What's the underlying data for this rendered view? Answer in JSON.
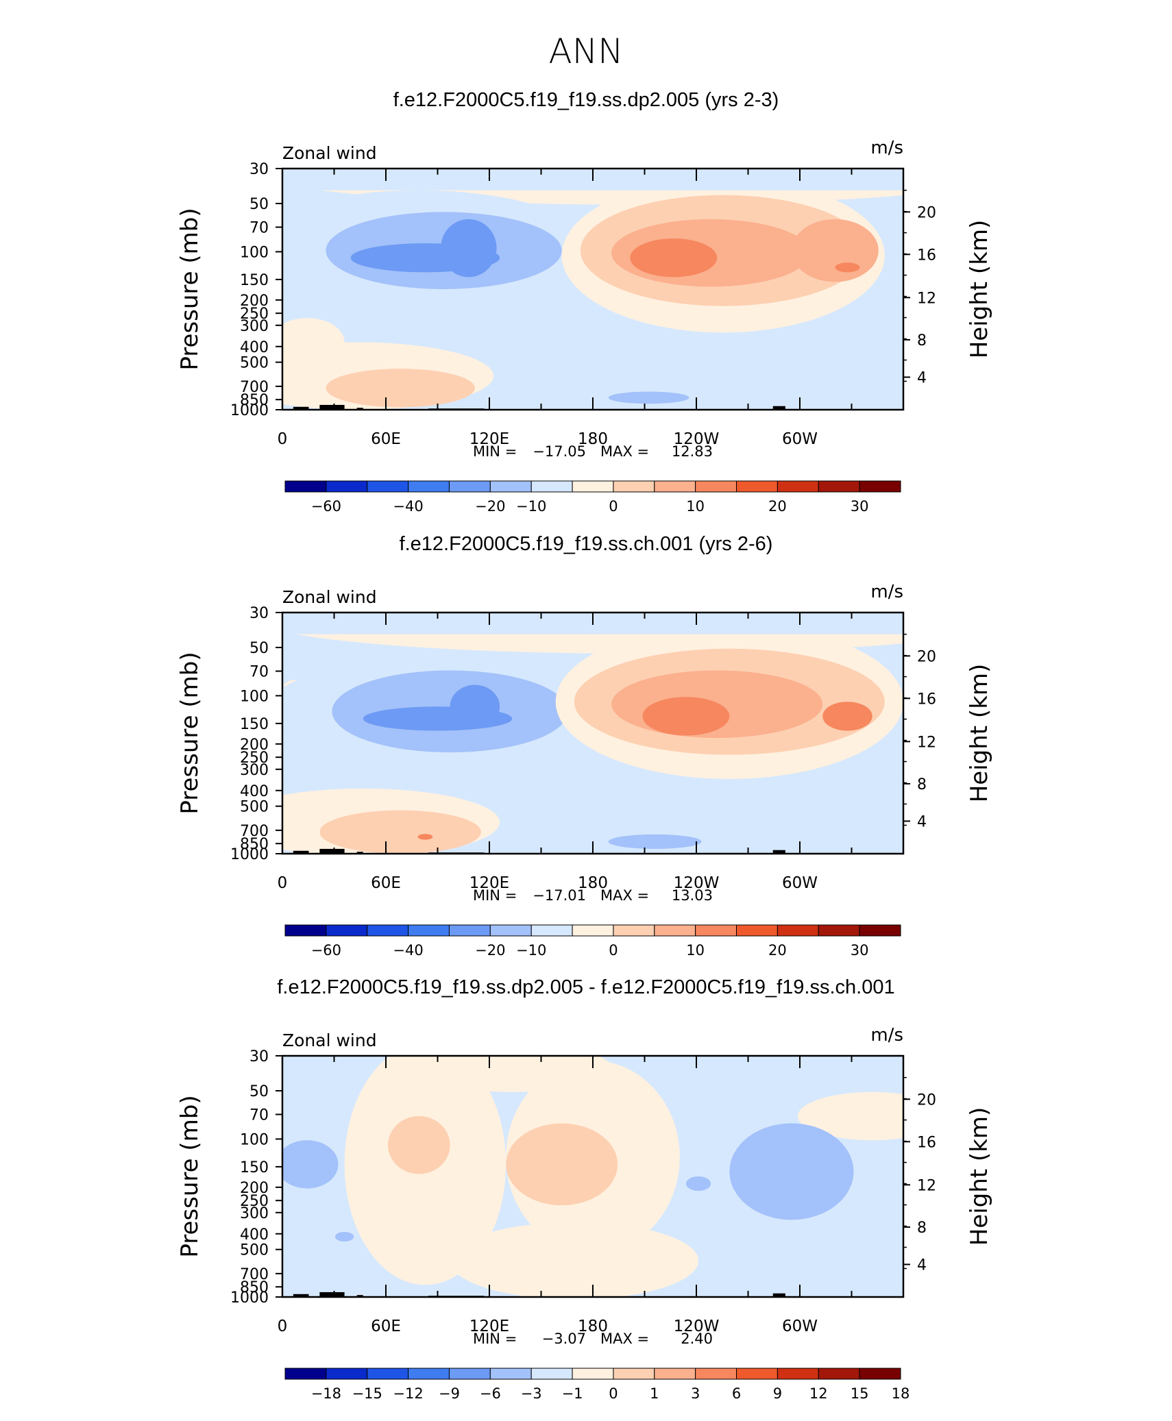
{
  "page_title": "ANN",
  "colors": {
    "full": [
      "#00008c",
      "#0a2acc",
      "#1f55e6",
      "#3f7cf0",
      "#6c9af4",
      "#a3c1fa",
      "#d6e8fd",
      "#fff1e0",
      "#fdd0b2",
      "#fbb08e",
      "#f6875e",
      "#ef5a2c",
      "#cf3112",
      "#a21709",
      "#780000"
    ],
    "diff": [
      "#00008c",
      "#0a2acc",
      "#1f55e6",
      "#3f7cf0",
      "#6c9af4",
      "#a3c1fa",
      "#d6e8fd",
      "#fff1e0",
      "#fdd0b2",
      "#fbb08e",
      "#f6875e",
      "#ef5a2c",
      "#cf3112",
      "#a21709",
      "#780000"
    ]
  },
  "chart_data": [
    {
      "type": "heatmap",
      "title": "f.e12.F2000C5.f19_f19.ss.dp2.005 (yrs 2-3)",
      "variable": "Zonal wind",
      "units": "m/s",
      "ylabel": "Pressure (mb)",
      "ylabel_right": "Height (km)",
      "xticks": [
        "0",
        "60E",
        "120E",
        "180",
        "120W",
        "60W"
      ],
      "yticks": [
        "30",
        "50",
        "70",
        "100",
        "150",
        "200",
        "250",
        "300",
        "400",
        "500",
        "700",
        "850",
        "1000"
      ],
      "yticks_right": [
        "20",
        "16",
        "12",
        "8",
        "4"
      ],
      "min_label": "MIN =",
      "min_value": "-17.05",
      "max_label": "MAX =",
      "max_value": "12.83",
      "colorbar_labels": [
        "-60",
        "-40",
        "-20",
        "-10",
        "0",
        "10",
        "20",
        "30"
      ]
    },
    {
      "type": "heatmap",
      "title": "f.e12.F2000C5.f19_f19.ss.ch.001 (yrs 2-6)",
      "variable": "Zonal wind",
      "units": "m/s",
      "ylabel": "Pressure (mb)",
      "ylabel_right": "Height (km)",
      "xticks": [
        "0",
        "60E",
        "120E",
        "180",
        "120W",
        "60W"
      ],
      "yticks": [
        "30",
        "50",
        "70",
        "100",
        "150",
        "200",
        "250",
        "300",
        "400",
        "500",
        "700",
        "850",
        "1000"
      ],
      "yticks_right": [
        "20",
        "16",
        "12",
        "8",
        "4"
      ],
      "min_label": "MIN =",
      "min_value": "-17.01",
      "max_label": "MAX =",
      "max_value": "13.03",
      "colorbar_labels": [
        "-60",
        "-40",
        "-20",
        "-10",
        "0",
        "10",
        "20",
        "30"
      ]
    },
    {
      "type": "heatmap",
      "title": "f.e12.F2000C5.f19_f19.ss.dp2.005 - f.e12.F2000C5.f19_f19.ss.ch.001",
      "variable": "Zonal wind",
      "units": "m/s",
      "ylabel": "Pressure (mb)",
      "ylabel_right": "Height (km)",
      "xticks": [
        "0",
        "60E",
        "120E",
        "180",
        "120W",
        "60W"
      ],
      "yticks": [
        "30",
        "50",
        "70",
        "100",
        "150",
        "200",
        "250",
        "300",
        "400",
        "500",
        "700",
        "850",
        "1000"
      ],
      "yticks_right": [
        "20",
        "16",
        "12",
        "8",
        "4"
      ],
      "min_label": "MIN =",
      "min_value": "-3.07",
      "max_label": "MAX =",
      "max_value": "2.40",
      "colorbar_labels": [
        "-18",
        "-15",
        "-12",
        "-9",
        "-6",
        "-3",
        "-1",
        "0",
        "1",
        "3",
        "6",
        "9",
        "12",
        "15",
        "18"
      ]
    }
  ]
}
